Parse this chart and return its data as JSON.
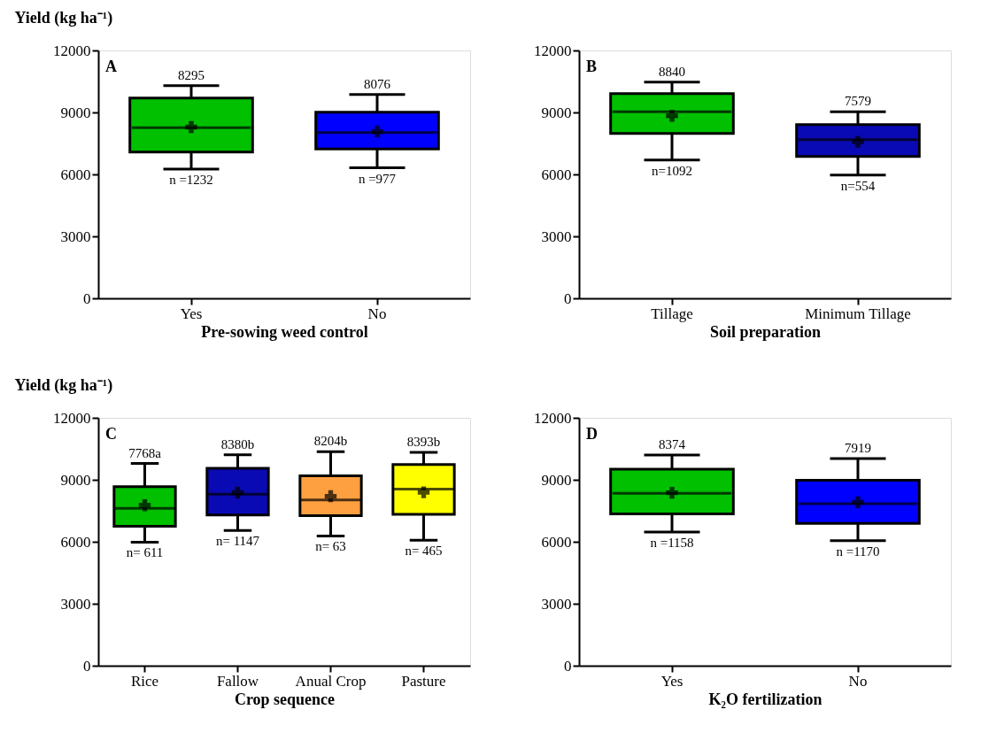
{
  "chart_data": [
    {
      "type": "box",
      "title": "A",
      "ylabel": "Yield (kg ha⁻¹)",
      "xlabel": "Pre-sowing weed control",
      "categories": [
        "Yes",
        "No"
      ],
      "colors": [
        "#00c000",
        "#0000ff"
      ],
      "boxes": [
        {
          "low": 6260,
          "q1": 7080,
          "median": 8260,
          "q3": 9700,
          "high": 10300,
          "mean": 8295
        },
        {
          "low": 6320,
          "q1": 7230,
          "median": 8020,
          "q3": 9010,
          "high": 9870,
          "mean": 8076
        }
      ],
      "annotations": [
        "8295",
        "n =1232",
        "8076",
        "n =977"
      ],
      "ylim": [
        0,
        12000
      ],
      "yticks": [
        0,
        3000,
        6000,
        9000,
        12000
      ],
      "grid": false
    },
    {
      "type": "box",
      "title": "B",
      "xlabel": "Soil preparation",
      "categories": [
        "Tillage",
        "Minimum Tillage"
      ],
      "colors": [
        "#00c000",
        "#0a0ab4"
      ],
      "boxes": [
        {
          "low": 6700,
          "q1": 7980,
          "median": 9030,
          "q3": 9910,
          "high": 10470,
          "mean": 8840
        },
        {
          "low": 5970,
          "q1": 6870,
          "median": 7680,
          "q3": 8410,
          "high": 9030,
          "mean": 7579
        }
      ],
      "annotations": [
        "8840",
        "n=1092",
        "7579",
        "n=554"
      ],
      "ylim": [
        0,
        12000
      ],
      "yticks": [
        0,
        3000,
        6000,
        9000,
        12000
      ],
      "grid": false
    },
    {
      "type": "box",
      "title": "C",
      "ylabel": "Yield (kg ha⁻¹)",
      "xlabel": "Crop sequence",
      "categories": [
        "Rice",
        "Fallow",
        "Anual Crop",
        "Pasture"
      ],
      "colors": [
        "#00c000",
        "#0a0ab4",
        "#ffa040",
        "#ffff00"
      ],
      "boxes": [
        {
          "low": 5980,
          "q1": 6750,
          "median": 7620,
          "q3": 8670,
          "high": 9790,
          "mean": 7768
        },
        {
          "low": 6550,
          "q1": 7300,
          "median": 8300,
          "q3": 9560,
          "high": 10210,
          "mean": 8380
        },
        {
          "low": 6280,
          "q1": 7260,
          "median": 8030,
          "q3": 9190,
          "high": 10360,
          "mean": 8204
        },
        {
          "low": 6080,
          "q1": 7330,
          "median": 8550,
          "q3": 9740,
          "high": 10330,
          "mean": 8393
        }
      ],
      "annotations": [
        "7768a",
        "n= 611",
        "8380b",
        "n= 1147",
        "8204b",
        "n= 63",
        "8393b",
        "n= 465"
      ],
      "ylim": [
        0,
        12000
      ],
      "yticks": [
        0,
        3000,
        6000,
        9000,
        12000
      ],
      "grid": false
    },
    {
      "type": "box",
      "title": "D",
      "xlabel": "K₂O fertilization",
      "categories": [
        "Yes",
        "No"
      ],
      "colors": [
        "#00c000",
        "#0000ff"
      ],
      "boxes": [
        {
          "low": 6470,
          "q1": 7350,
          "median": 8350,
          "q3": 9510,
          "high": 10200,
          "mean": 8374
        },
        {
          "low": 6050,
          "q1": 6890,
          "median": 7840,
          "q3": 8980,
          "high": 10030,
          "mean": 7919
        }
      ],
      "annotations": [
        "8374",
        "n =1158",
        "7919",
        "n =1170"
      ],
      "ylim": [
        0,
        12000
      ],
      "yticks": [
        0,
        3000,
        6000,
        9000,
        12000
      ],
      "grid": false
    }
  ]
}
